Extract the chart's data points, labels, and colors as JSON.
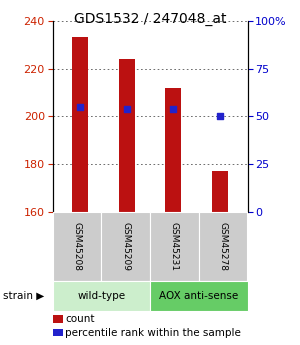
{
  "title": "GDS1532 / 247048_at",
  "samples": [
    "GSM45208",
    "GSM45209",
    "GSM45231",
    "GSM45278"
  ],
  "bar_tops": [
    233,
    224,
    212,
    177
  ],
  "bar_base": 160,
  "blue_values": [
    204,
    203,
    203,
    200
  ],
  "ylim_left": [
    160,
    240
  ],
  "ylim_right": [
    0,
    100
  ],
  "yticks_left": [
    160,
    180,
    200,
    220,
    240
  ],
  "yticks_right": [
    0,
    25,
    50,
    75,
    100
  ],
  "ytick_labels_right": [
    "0",
    "25",
    "50",
    "75",
    "100%"
  ],
  "bar_color": "#bb1111",
  "blue_color": "#2222cc",
  "groups": [
    {
      "label": "wild-type",
      "samples": [
        0,
        1
      ],
      "color": "#cceecc"
    },
    {
      "label": "AOX anti-sense",
      "samples": [
        2,
        3
      ],
      "color": "#66cc66"
    }
  ],
  "legend_count_label": "count",
  "legend_pct_label": "percentile rank within the sample",
  "bar_width": 0.35,
  "grid_color": "#555555",
  "bg_color": "#ffffff",
  "plot_bg": "#ffffff",
  "tick_color_left": "#cc2200",
  "tick_color_right": "#0000cc",
  "sample_box_color": "#cccccc",
  "spine_color": "#000000"
}
